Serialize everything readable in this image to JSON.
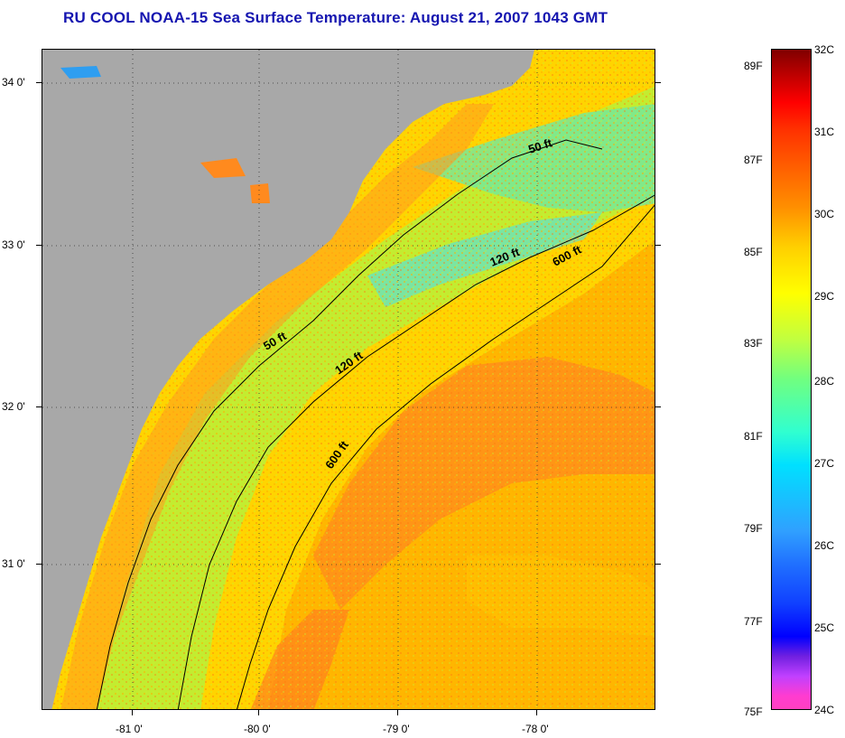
{
  "title": "RU COOL  NOAA-15  Sea Surface Temperature:  August 21, 2007 1043 GMT",
  "map": {
    "lat_labels": [
      "34 0'",
      "33 0'",
      "32 0'",
      "31 0'"
    ],
    "lon_labels": [
      "-81 0'",
      "-80 0'",
      "-79 0'",
      "-78 0'"
    ],
    "contours": {
      "50ft_upper": "50 ft",
      "120ft_upper": "120 ft",
      "600ft_upper": "600 ft",
      "50ft_lower": "50 ft",
      "120ft_lower": "120 ft",
      "600ft_lower": "600 ft"
    },
    "colors": {
      "land": "#a8a8a8",
      "warm": "#ff8a1e",
      "mid": "#ffd200",
      "cool": "#8ef040",
      "cold": "#30e0ff"
    }
  },
  "colorbar": {
    "celsius": [
      "32C",
      "31C",
      "30C",
      "29C",
      "28C",
      "27C",
      "26C",
      "25C",
      "24C"
    ],
    "fahrenheit": [
      "89F",
      "87F",
      "85F",
      "83F",
      "81F",
      "79F",
      "77F",
      "75F"
    ]
  }
}
